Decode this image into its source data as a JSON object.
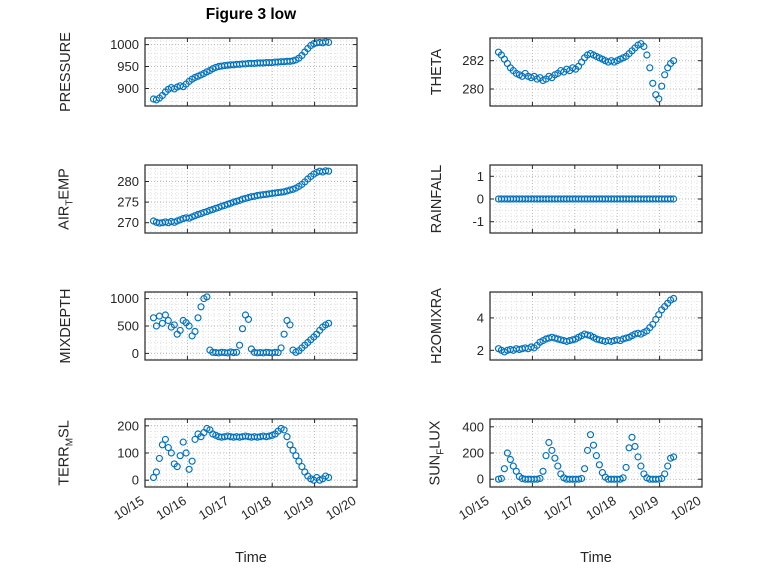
{
  "title": "Figure 3 low",
  "xlabel": "Time",
  "colors": {
    "marker": "#0072BD",
    "axis": "#262626",
    "grid_major": "#b8b8b8",
    "grid_minor": "#e2e2e2"
  },
  "xlim": [
    0,
    5
  ],
  "x_minor_step": 0.125,
  "x_ticks": {
    "values": [
      0,
      1,
      2,
      3,
      4,
      5
    ],
    "labels": [
      "10/15",
      "10/16",
      "10/17",
      "10/18",
      "10/19",
      "10/20"
    ]
  },
  "x_axis_encoding": "days after 10/15",
  "shared_x": [
    0.2,
    0.27,
    0.34,
    0.41,
    0.48,
    0.55,
    0.62,
    0.69,
    0.76,
    0.83,
    0.9,
    0.97,
    1.04,
    1.11,
    1.18,
    1.25,
    1.32,
    1.39,
    1.46,
    1.53,
    1.6,
    1.67,
    1.74,
    1.81,
    1.88,
    1.95,
    2.02,
    2.09,
    2.16,
    2.23,
    2.3,
    2.37,
    2.44,
    2.51,
    2.58,
    2.65,
    2.72,
    2.79,
    2.86,
    2.93,
    3,
    3.07,
    3.14,
    3.21,
    3.28,
    3.35,
    3.42,
    3.49,
    3.56,
    3.63,
    3.7,
    3.77,
    3.84,
    3.91,
    3.98,
    4.05,
    4.12,
    4.19,
    4.26,
    4.33
  ],
  "chart_data": [
    {
      "id": "pressure",
      "type": "scatter",
      "row": 1,
      "col": 1,
      "ylabel": {
        "pre": "PRESSURE",
        "sub": "",
        "post": ""
      },
      "ylim": [
        860,
        1015
      ],
      "yticks": [
        900,
        950,
        1000
      ],
      "y_minor": 10,
      "show_x_tick_labels": false,
      "y": [
        876,
        874,
        878,
        884,
        892,
        898,
        902,
        899,
        903,
        906,
        904,
        910,
        916,
        921,
        925,
        928,
        931,
        934,
        938,
        941,
        945,
        948,
        950,
        951,
        952,
        953,
        954,
        954,
        955,
        955,
        956,
        956,
        957,
        957,
        957,
        958,
        958,
        958,
        959,
        959,
        959,
        960,
        960,
        961,
        961,
        962,
        962,
        963,
        965,
        969,
        975,
        983,
        991,
        998,
        1002,
        1004,
        1005,
        1004,
        1006,
        1005
      ]
    },
    {
      "id": "theta",
      "type": "scatter",
      "row": 1,
      "col": 2,
      "ylabel": {
        "pre": "THETA",
        "sub": "",
        "post": ""
      },
      "ylim": [
        278.8,
        283.6
      ],
      "yticks": [
        280,
        282
      ],
      "y_minor": 0.5,
      "show_x_tick_labels": false,
      "y": [
        282.6,
        282.4,
        282.1,
        281.8,
        281.5,
        281.3,
        281.1,
        281.0,
        280.9,
        281.1,
        280.9,
        280.8,
        280.9,
        280.7,
        280.8,
        280.6,
        280.7,
        280.9,
        280.8,
        281.0,
        281.1,
        281.3,
        281.2,
        281.4,
        281.3,
        281.5,
        281.4,
        281.6,
        281.9,
        282.2,
        282.4,
        282.5,
        282.4,
        282.3,
        282.2,
        282.1,
        282.0,
        281.9,
        282.0,
        281.9,
        282.0,
        282.1,
        282.2,
        282.3,
        282.5,
        282.7,
        282.9,
        283.1,
        283.2,
        283.0,
        282.4,
        281.5,
        280.4,
        279.6,
        279.3,
        280.2,
        281.0,
        281.5,
        281.8,
        282.0
      ]
    },
    {
      "id": "air_temp",
      "type": "scatter",
      "row": 2,
      "col": 1,
      "ylabel": {
        "pre": "AIR",
        "sub": "T",
        "post": "EMP"
      },
      "ylim": [
        267.5,
        284
      ],
      "yticks": [
        270,
        275,
        280
      ],
      "y_minor": 1,
      "show_x_tick_labels": false,
      "y": [
        270.4,
        270.1,
        269.9,
        270.0,
        270.2,
        270.0,
        270.3,
        270.1,
        270.4,
        270.7,
        271.0,
        271.2,
        271.1,
        271.4,
        271.7,
        272.0,
        272.2,
        272.5,
        272.7,
        273.0,
        273.2,
        273.5,
        273.7,
        274.0,
        274.2,
        274.5,
        274.7,
        275.0,
        275.2,
        275.4,
        275.7,
        275.9,
        276.1,
        276.3,
        276.4,
        276.6,
        276.7,
        276.8,
        276.9,
        277.0,
        277.1,
        277.2,
        277.3,
        277.4,
        277.5,
        277.7,
        277.9,
        278.1,
        278.4,
        278.8,
        279.3,
        279.9,
        280.6,
        281.2,
        281.8,
        282.2,
        282.5,
        282.3,
        282.6,
        282.5
      ]
    },
    {
      "id": "rainfall",
      "type": "scatter",
      "row": 2,
      "col": 2,
      "ylabel": {
        "pre": "RAINFALL",
        "sub": "",
        "post": ""
      },
      "ylim": [
        -1.5,
        1.5
      ],
      "yticks": [
        -1,
        0,
        1
      ],
      "y_minor": 0.25,
      "show_x_tick_labels": false,
      "y": [
        0,
        0,
        0,
        0,
        0,
        0,
        0,
        0,
        0,
        0,
        0,
        0,
        0,
        0,
        0,
        0,
        0,
        0,
        0,
        0,
        0,
        0,
        0,
        0,
        0,
        0,
        0,
        0,
        0,
        0,
        0,
        0,
        0,
        0,
        0,
        0,
        0,
        0,
        0,
        0,
        0,
        0,
        0,
        0,
        0,
        0,
        0,
        0,
        0,
        0,
        0,
        0,
        0,
        0,
        0,
        0,
        0,
        0,
        0,
        0
      ]
    },
    {
      "id": "mixdepth",
      "type": "scatter",
      "row": 3,
      "col": 1,
      "ylabel": {
        "pre": "MIXDEPTH",
        "sub": "",
        "post": ""
      },
      "ylim": [
        -120,
        1120
      ],
      "yticks": [
        0,
        500,
        1000
      ],
      "y_minor": 100,
      "show_x_tick_labels": false,
      "y": [
        650,
        500,
        680,
        550,
        700,
        600,
        480,
        520,
        350,
        420,
        600,
        560,
        500,
        320,
        400,
        650,
        850,
        1000,
        1030,
        60,
        20,
        15,
        10,
        20,
        15,
        10,
        25,
        15,
        20,
        150,
        450,
        700,
        620,
        80,
        20,
        10,
        15,
        10,
        20,
        15,
        10,
        20,
        15,
        100,
        350,
        600,
        520,
        60,
        20,
        50,
        100,
        150,
        200,
        250,
        300,
        350,
        420,
        480,
        520,
        550
      ]
    },
    {
      "id": "h2omixra",
      "type": "scatter",
      "row": 3,
      "col": 2,
      "ylabel": {
        "pre": "H2OMIXRA",
        "sub": "",
        "post": ""
      },
      "ylim": [
        1.4,
        5.6
      ],
      "yticks": [
        2,
        4
      ],
      "y_minor": 0.5,
      "show_x_tick_labels": false,
      "y": [
        2.1,
        2.0,
        1.9,
        2.0,
        2.05,
        2.0,
        2.1,
        2.05,
        2.1,
        2.15,
        2.1,
        2.2,
        2.15,
        2.3,
        2.5,
        2.6,
        2.7,
        2.75,
        2.8,
        2.75,
        2.7,
        2.65,
        2.6,
        2.55,
        2.6,
        2.65,
        2.7,
        2.8,
        2.9,
        3.0,
        2.95,
        2.9,
        2.8,
        2.7,
        2.65,
        2.6,
        2.55,
        2.6,
        2.55,
        2.6,
        2.65,
        2.6,
        2.7,
        2.75,
        2.8,
        2.9,
        3.0,
        3.05,
        3.0,
        3.1,
        3.2,
        3.4,
        3.6,
        3.9,
        4.2,
        4.5,
        4.7,
        4.9,
        5.1,
        5.2
      ]
    },
    {
      "id": "terr_msl",
      "type": "scatter",
      "row": 4,
      "col": 1,
      "ylabel": {
        "pre": "TERR",
        "sub": "M",
        "post": "SL"
      },
      "ylim": [
        -25,
        225
      ],
      "yticks": [
        0,
        100,
        200
      ],
      "y_minor": 20,
      "show_x_tick_labels": true,
      "y": [
        10,
        30,
        80,
        130,
        150,
        120,
        100,
        60,
        50,
        90,
        140,
        100,
        40,
        70,
        150,
        170,
        160,
        175,
        190,
        185,
        170,
        165,
        160,
        158,
        160,
        162,
        160,
        158,
        160,
        158,
        160,
        162,
        160,
        158,
        160,
        158,
        160,
        162,
        160,
        162,
        165,
        170,
        180,
        190,
        185,
        160,
        130,
        110,
        90,
        70,
        50,
        30,
        15,
        5,
        0,
        10,
        0,
        5,
        15,
        10
      ]
    },
    {
      "id": "sun_flux",
      "type": "scatter",
      "row": 4,
      "col": 2,
      "ylabel": {
        "pre": "SUN",
        "sub": "F",
        "post": "LUX"
      },
      "ylim": [
        -60,
        460
      ],
      "yticks": [
        0,
        200,
        400
      ],
      "y_minor": 50,
      "show_x_tick_labels": true,
      "y": [
        0,
        5,
        80,
        200,
        150,
        100,
        60,
        20,
        5,
        0,
        0,
        0,
        0,
        0,
        5,
        60,
        180,
        280,
        220,
        160,
        100,
        40,
        10,
        0,
        0,
        0,
        0,
        0,
        5,
        80,
        220,
        340,
        260,
        180,
        110,
        50,
        15,
        0,
        0,
        0,
        0,
        0,
        10,
        90,
        240,
        320,
        250,
        170,
        100,
        40,
        10,
        0,
        0,
        0,
        0,
        5,
        40,
        100,
        160,
        170
      ]
    }
  ]
}
